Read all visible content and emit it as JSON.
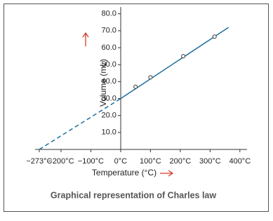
{
  "chart_data": {
    "type": "line",
    "caption": "Graphical representation of Charles law",
    "x_label": "Temperature (°C)",
    "y_label": "Volume (mL)",
    "xlim": [
      -287,
      424
    ],
    "ylim": [
      0,
      84
    ],
    "xticks": [
      {
        "value": -273,
        "label": "−273°C"
      },
      {
        "value": -200,
        "label": "−200°C"
      },
      {
        "value": -100,
        "label": "−100°C"
      },
      {
        "value": 0,
        "label": "0°C"
      },
      {
        "value": 100,
        "label": "100°C"
      },
      {
        "value": 200,
        "label": "200°C"
      },
      {
        "value": 300,
        "label": "300°C"
      },
      {
        "value": 400,
        "label": "400°C"
      }
    ],
    "yticks": [
      {
        "value": 10,
        "label": "10.0"
      },
      {
        "value": 20,
        "label": "20.0"
      },
      {
        "value": 30,
        "label": "30.0"
      },
      {
        "value": 40,
        "label": "40.0"
      },
      {
        "value": 50,
        "label": "50.0"
      },
      {
        "value": 60,
        "label": "60.0"
      },
      {
        "value": 70,
        "label": "70.0"
      },
      {
        "value": 80,
        "label": "80.0"
      }
    ],
    "lines": [
      {
        "x": [
          -273,
          0
        ],
        "y": [
          0,
          30
        ],
        "dashed": true,
        "color": "#1f6f9c"
      },
      {
        "x": [
          0,
          362
        ],
        "y": [
          30,
          72
        ],
        "dashed": false,
        "color": "#1f6f9c"
      }
    ],
    "points": {
      "x": [
        50,
        100,
        210,
        315
      ],
      "y": [
        37,
        42.5,
        55,
        66.5
      ],
      "color": "#333333"
    }
  }
}
